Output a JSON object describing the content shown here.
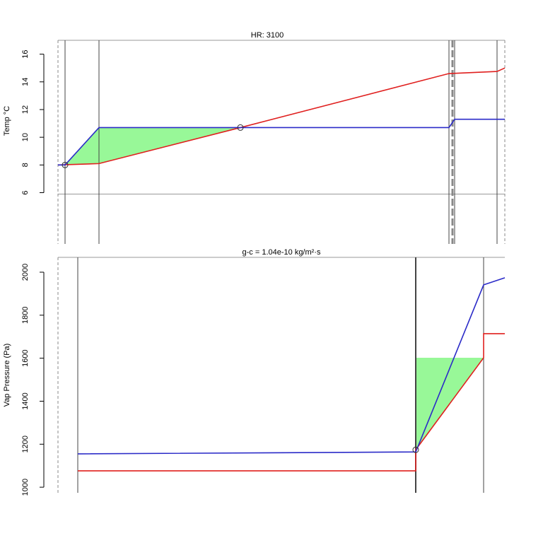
{
  "chart_data": [
    {
      "type": "line",
      "title": "HR: 3100",
      "y_label": "Temp °C",
      "xlim": [
        0,
        632
      ],
      "ylim": [
        2.3,
        17
      ],
      "yticks": [
        6,
        8,
        10,
        12,
        14,
        16
      ],
      "hline": 5.9,
      "vlines": [
        {
          "x": 0,
          "dashed": true
        },
        {
          "x": 10,
          "dashed": false
        },
        {
          "x": 58,
          "dashed": false
        },
        {
          "x": 553,
          "dashed": false
        },
        {
          "x": 558,
          "dashed": true
        },
        {
          "x": 561,
          "dashed": false
        },
        {
          "x": 621,
          "dashed": false
        },
        {
          "x": 632,
          "dashed": true
        }
      ],
      "fill": {
        "color": "#98f898",
        "x": [
          10,
          58,
          258,
          58
        ],
        "values": [
          8.0,
          10.7,
          10.7,
          8.1
        ]
      },
      "series": [
        {
          "color": "#e0201f",
          "x": [
            0,
            58,
            258,
            553,
            621,
            632
          ],
          "values": [
            8.0,
            8.1,
            10.7,
            14.6,
            14.75,
            15.0
          ]
        },
        {
          "color": "#2b2bc8",
          "x": [
            0,
            10,
            58,
            553,
            561,
            632
          ],
          "values": [
            8.0,
            8.0,
            10.7,
            10.7,
            11.3,
            11.3
          ]
        }
      ],
      "points": {
        "x": [
          10,
          258
        ],
        "values": [
          8.0,
          10.7
        ]
      }
    },
    {
      "type": "line",
      "title": "g-c =  1.04e-10  kg/m²·s",
      "y_label": "Vap Pressure (Pa)",
      "xlim": [
        0,
        632
      ],
      "ylim": [
        974,
        2069
      ],
      "yticks": [
        1000,
        1200,
        1400,
        1600,
        1800,
        2000
      ],
      "vlines": [
        {
          "x": 0,
          "dashed": true
        },
        {
          "x": 28,
          "dashed": false
        },
        {
          "x": 506,
          "dashed": false
        },
        {
          "x": 602,
          "dashed": false
        }
      ],
      "fill": {
        "color": "#98f898",
        "x": [
          506,
          506,
          602
        ],
        "values": [
          1174,
          1602,
          1602
        ]
      },
      "series": [
        {
          "color": "#e0201f",
          "x": [
            28,
            506,
            506,
            602,
            602,
            632
          ],
          "values": [
            1076,
            1076,
            1174,
            1602,
            1714,
            1714
          ]
        },
        {
          "color": "#2b2bc8",
          "x": [
            28,
            506,
            602,
            632
          ],
          "values": [
            1155,
            1164,
            1941,
            1974
          ]
        }
      ],
      "points": {
        "x": [
          506
        ],
        "values": [
          1174
        ]
      }
    }
  ]
}
